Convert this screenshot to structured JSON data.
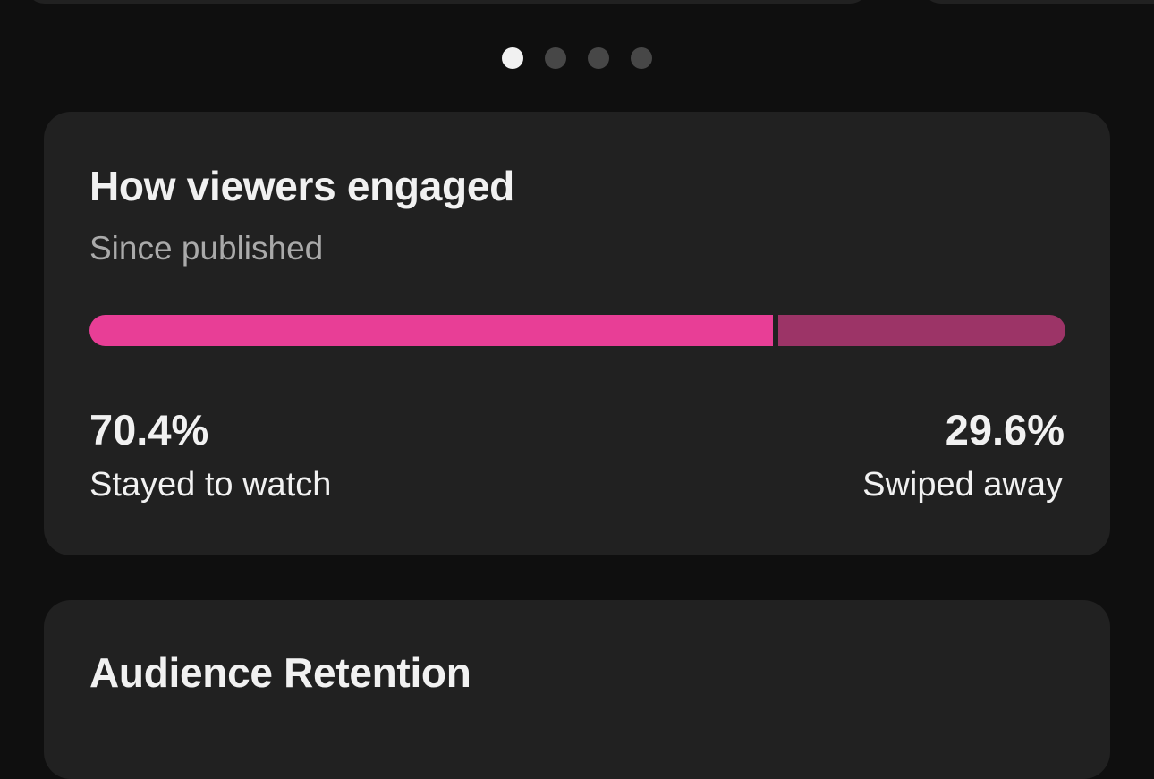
{
  "carousel": {
    "page_count": 4,
    "active_index": 0
  },
  "engagement": {
    "title": "How viewers engaged",
    "subtitle": "Since published",
    "stayed": {
      "value": "70.4%",
      "label": "Stayed to watch",
      "fraction": 0.704,
      "color": "#e83e96"
    },
    "swiped": {
      "value": "29.6%",
      "label": "Swiped away",
      "fraction": 0.296,
      "color": "#9c3467"
    }
  },
  "retention": {
    "title": "Audience Retention"
  }
}
